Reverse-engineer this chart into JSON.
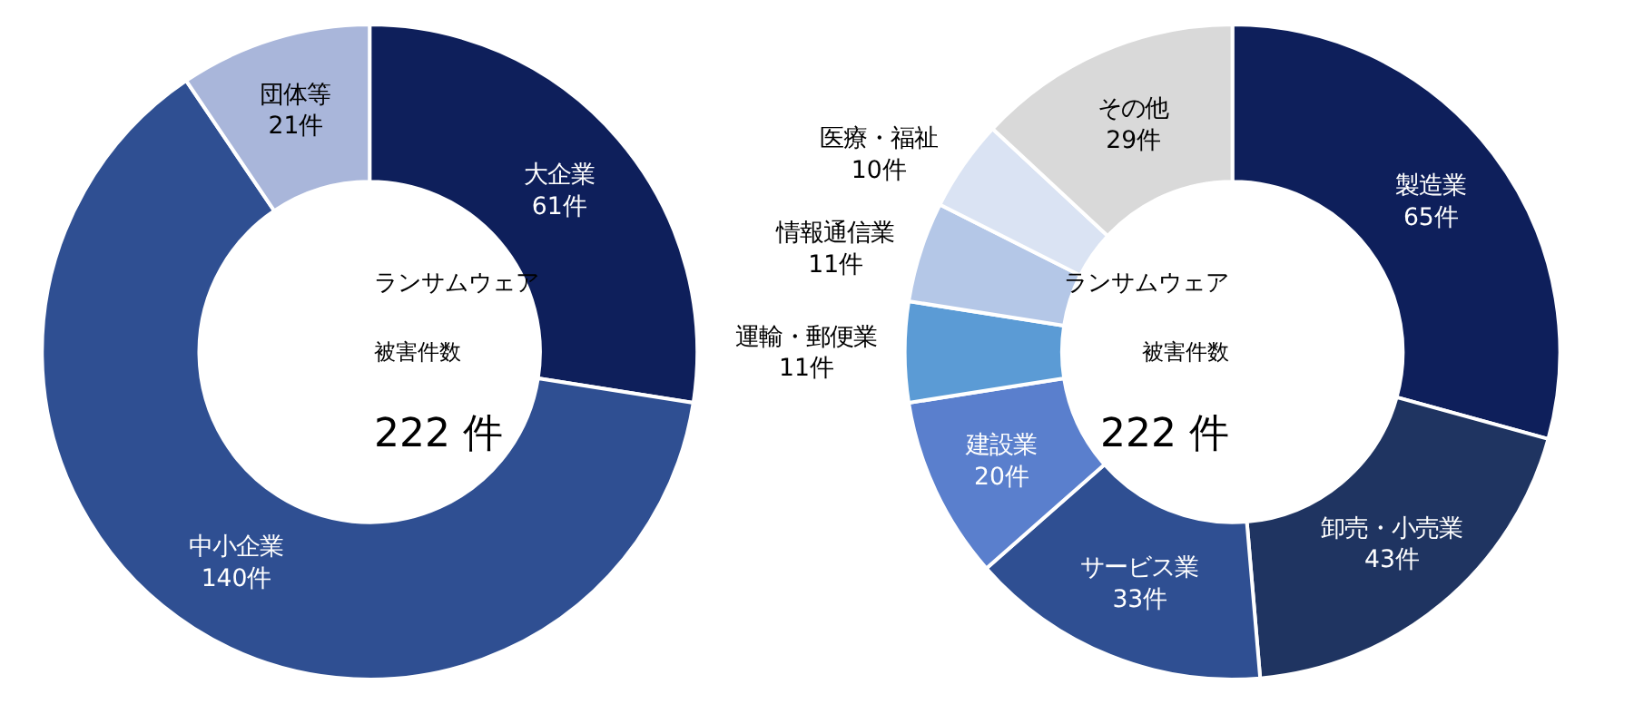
{
  "chart_data": [
    {
      "type": "donut",
      "categories": [
        "大企業",
        "中小企業",
        "団体等"
      ],
      "values": [
        61,
        140,
        21
      ],
      "value_labels": [
        "61件",
        "140件",
        "21件"
      ],
      "colors": [
        "#0e1f5b",
        "#2f4f92",
        "#a9b6da"
      ],
      "annotations": [
        "ランサムウェア",
        "被害件数",
        "222 件"
      ]
    },
    {
      "type": "donut",
      "categories": [
        "製造業",
        "卸売・小売業",
        "サービス業",
        "建設業",
        "運輸・郵便業",
        "情報通信業",
        "医療・福祉",
        "その他"
      ],
      "values": [
        65,
        43,
        33,
        20,
        11,
        11,
        10,
        29
      ],
      "value_labels": [
        "65件",
        "43件",
        "33件",
        "20件",
        "11件",
        "11件",
        "10件",
        "29件"
      ],
      "colors": [
        "#0e1f5b",
        "#1f3461",
        "#2f4f92",
        "#5a7fcd",
        "#5b9bd5",
        "#b4c7e7",
        "#dae3f3",
        "#d9d9d9"
      ],
      "annotations": [
        "ランサムウェア",
        "被害件数",
        "222 件"
      ]
    }
  ]
}
